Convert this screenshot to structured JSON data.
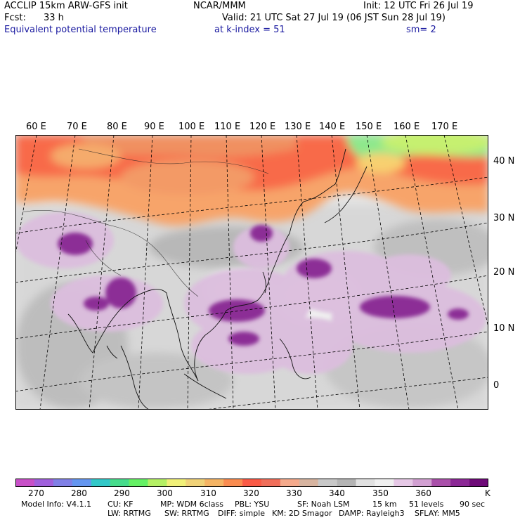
{
  "header": {
    "model": "ACCLIP 15km ARW-GFS init",
    "org": "NCAR/MMM",
    "init": "Init: 12 UTC Fri 26 Jul 19",
    "fcst_label": "Fcst:",
    "fcst_value": "33 h",
    "valid": "Valid: 21 UTC Sat 27 Jul 19 (06 JST Sun 28 Jul 19)",
    "field": "Equivalent potential temperature",
    "kindex": "at k-index =  51",
    "sm": "sm= 2"
  },
  "map": {
    "lon_labels": [
      "60 E",
      "70 E",
      "80 E",
      "90 E",
      "100 E",
      "110 E",
      "120 E",
      "130 E",
      "140 E",
      "150 E",
      "160 E",
      "170 E"
    ],
    "lat_labels": [
      "40 N",
      "30 N",
      "20 N",
      "10 N",
      "0"
    ]
  },
  "colorbar": {
    "labels": [
      "270",
      "280",
      "290",
      "300",
      "310",
      "320",
      "330",
      "340",
      "350",
      "360"
    ],
    "unit": "K",
    "colors": [
      "#c850c8",
      "#a060dc",
      "#8080e6",
      "#6496f0",
      "#32c8c8",
      "#46dc8c",
      "#64f064",
      "#b4f064",
      "#f0f078",
      "#f0d278",
      "#f5b464",
      "#fa8c50",
      "#fa5a46",
      "#f06e5a",
      "#f5aa8c",
      "#d7b4a0",
      "#c8c8c8",
      "#b4b4b4",
      "#e1e1e1",
      "#f0f0f0",
      "#e6c8e6",
      "#d2a0d2",
      "#aa50aa",
      "#8c2896",
      "#6e0a78"
    ]
  },
  "footer": {
    "line1": [
      "Model Info: V4.1.1",
      "CU: KF",
      "MP: WDM 6class",
      "PBL: YSU",
      "SF: Noah LSM",
      "15 km",
      "51 levels",
      "90 sec"
    ],
    "line2": [
      "LW: RRTMG",
      "SW: RRTMG",
      "DIFF: simple",
      "KM: 2D Smagor",
      "DAMP: Rayleigh3",
      "SFLAY: MM5"
    ]
  }
}
